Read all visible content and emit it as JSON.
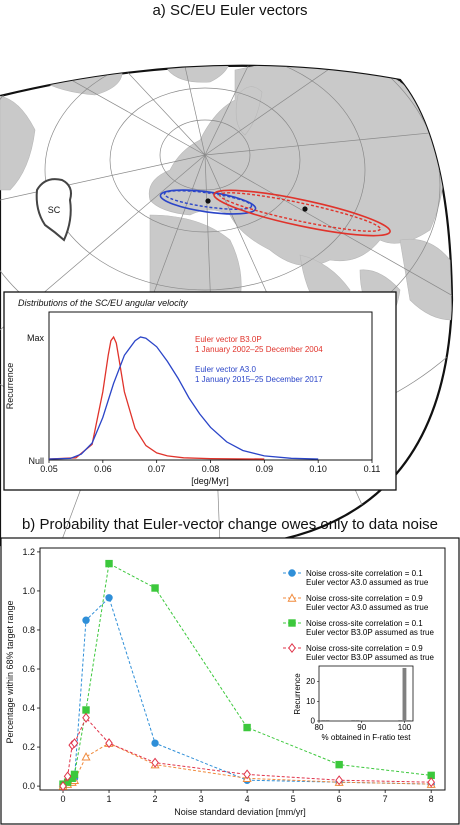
{
  "panel_a": {
    "title": "a) SC/EU Euler vectors",
    "sc_label": "SC"
  },
  "panel_b": {
    "title": "b) Probability that Euler-vector change owes only to data noise"
  },
  "colors": {
    "red": "#e0332b",
    "blue": "#2b45c8",
    "sky": "#2f8fd8",
    "orange": "#f08a3c",
    "green": "#3cc83c",
    "crimson": "#e0344a",
    "land": "#c9c9c9",
    "grey_bar": "#808080"
  },
  "chart_data": [
    {
      "type": "line",
      "title": "Distributions of the SC/EU angular velocity",
      "xlabel": "[deg/Myr]",
      "ylabel": "Recurrence",
      "xlim": [
        0.05,
        0.11
      ],
      "xticks": [
        "0.05",
        "0.06",
        "0.07",
        "0.08",
        "0.09",
        "0.10",
        "0.11"
      ],
      "yticks": [
        "Null",
        "Max"
      ],
      "ylim": [
        0,
        1
      ],
      "series": [
        {
          "name": "Euler vector B3.0P",
          "subtitle": "1 January 2002–25 December 2004",
          "color": "#e0332b",
          "x": [
            0.05,
            0.055,
            0.058,
            0.06,
            0.061,
            0.0615,
            0.062,
            0.0625,
            0.063,
            0.064,
            0.066,
            0.068,
            0.07,
            0.072,
            0.075,
            0.08,
            0.085,
            0.09
          ],
          "values": [
            0.0,
            0.01,
            0.12,
            0.55,
            0.85,
            0.97,
            1.0,
            0.95,
            0.82,
            0.55,
            0.25,
            0.11,
            0.05,
            0.025,
            0.01,
            0.003,
            0.001,
            0.0
          ]
        },
        {
          "name": "Euler vector A3.0",
          "subtitle": "1 January 2015–25 December 2017",
          "color": "#2b45c8",
          "x": [
            0.05,
            0.054,
            0.056,
            0.058,
            0.06,
            0.062,
            0.064,
            0.066,
            0.067,
            0.068,
            0.07,
            0.072,
            0.074,
            0.076,
            0.078,
            0.08,
            0.083,
            0.086,
            0.09,
            0.095,
            0.1
          ],
          "values": [
            0.0,
            0.005,
            0.04,
            0.13,
            0.34,
            0.62,
            0.85,
            0.97,
            1.0,
            0.99,
            0.92,
            0.8,
            0.66,
            0.5,
            0.37,
            0.26,
            0.14,
            0.07,
            0.025,
            0.006,
            0.0
          ]
        }
      ]
    },
    {
      "type": "line",
      "xlabel": "Noise standard deviation [mm/yr]",
      "ylabel": "Percentage within 68% target range",
      "xlim": [
        -0.5,
        8.3
      ],
      "ylim": [
        -0.02,
        1.22
      ],
      "xticks": [
        "0",
        "1",
        "2",
        "3",
        "4",
        "5",
        "6",
        "7",
        "8"
      ],
      "yticks": [
        "0.0",
        "0.2",
        "0.4",
        "0.6",
        "0.8",
        "1.0",
        "1.2"
      ],
      "x": [
        0.0,
        0.1,
        0.2,
        0.25,
        0.5,
        1.0,
        2.0,
        4.0,
        6.0,
        8.0
      ],
      "series": [
        {
          "name": "Noise cross-site correlation = 0.1",
          "name2": "Euler vector A3.0 assumed as true",
          "color": "#2f8fd8",
          "marker": "circle",
          "values": [
            0.01,
            0.02,
            0.03,
            0.04,
            0.85,
            0.965,
            0.22,
            0.03,
            0.02,
            0.01
          ]
        },
        {
          "name": "Noise cross-site correlation = 0.9",
          "name2": "Euler vector A3.0 assumed as true",
          "color": "#f08a3c",
          "marker": "triangle",
          "values": [
            0.0,
            0.01,
            0.02,
            0.03,
            0.15,
            0.22,
            0.11,
            0.04,
            0.02,
            0.01
          ]
        },
        {
          "name": "Noise cross-site correlation = 0.1",
          "name2": "Euler vector B3.0P assumed as true",
          "color": "#3cc83c",
          "marker": "square",
          "values": [
            0.01,
            0.02,
            0.04,
            0.06,
            0.39,
            1.14,
            1.015,
            0.3,
            0.11,
            0.055
          ]
        },
        {
          "name": "Noise cross-site correlation = 0.9",
          "name2": "Euler vector B3.0P assumed as true",
          "color": "#e0344a",
          "marker": "diamond",
          "values": [
            0.0,
            0.05,
            0.21,
            0.22,
            0.35,
            0.22,
            0.12,
            0.06,
            0.03,
            0.02
          ]
        }
      ]
    },
    {
      "type": "bar",
      "xlabel": "% obtained in F-ratio test",
      "ylabel": "Recurrence",
      "xlim": [
        80,
        102
      ],
      "ylim": [
        0,
        28
      ],
      "xticks": [
        "80",
        "90",
        "100"
      ],
      "yticks": [
        "0",
        "10",
        "20"
      ],
      "x": [
        81,
        82,
        88,
        89,
        99,
        100,
        101
      ],
      "values": [
        0.5,
        0.5,
        0.5,
        0.5,
        0.5,
        27,
        0.5
      ]
    }
  ]
}
